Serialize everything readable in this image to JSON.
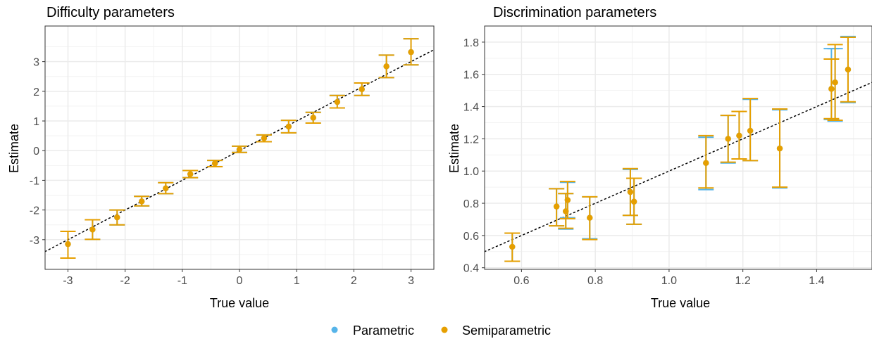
{
  "legend": {
    "items": [
      {
        "label": "Parametric",
        "color": "#56B4E9"
      },
      {
        "label": "Semiparametric",
        "color": "#E69F00"
      }
    ]
  },
  "chart_data": [
    {
      "type": "scatter",
      "title": "Difficulty parameters",
      "xlabel": "True value",
      "ylabel": "Estimate",
      "xlim": [
        -3.4,
        3.4
      ],
      "ylim": [
        -4.0,
        4.2
      ],
      "xticks": [
        -3,
        -2,
        -1,
        0,
        1,
        2,
        3
      ],
      "yticks": [
        -3,
        -2,
        -1,
        0,
        1,
        2,
        3
      ],
      "grid": true,
      "reference_line": "y = x",
      "series": [
        {
          "name": "Parametric",
          "color": "#56B4E9",
          "points": [
            {
              "x": -3.0,
              "y": -3.15,
              "lo": -3.62,
              "hi": -2.72
            },
            {
              "x": -2.57,
              "y": -2.66,
              "lo": -2.99,
              "hi": -2.33
            },
            {
              "x": -2.14,
              "y": -2.25,
              "lo": -2.5,
              "hi": -2.0
            },
            {
              "x": -1.71,
              "y": -1.71,
              "lo": -1.86,
              "hi": -1.54
            },
            {
              "x": -1.29,
              "y": -1.27,
              "lo": -1.45,
              "hi": -1.08
            },
            {
              "x": -0.86,
              "y": -0.79,
              "lo": -0.91,
              "hi": -0.67
            },
            {
              "x": -0.43,
              "y": -0.43,
              "lo": -0.54,
              "hi": -0.33
            },
            {
              "x": 0.0,
              "y": 0.04,
              "lo": -0.06,
              "hi": 0.15
            },
            {
              "x": 0.43,
              "y": 0.42,
              "lo": 0.3,
              "hi": 0.53
            },
            {
              "x": 0.86,
              "y": 0.81,
              "lo": 0.6,
              "hi": 1.02
            },
            {
              "x": 1.29,
              "y": 1.11,
              "lo": 0.93,
              "hi": 1.29
            },
            {
              "x": 1.71,
              "y": 1.64,
              "lo": 1.44,
              "hi": 1.86
            },
            {
              "x": 2.14,
              "y": 2.07,
              "lo": 1.86,
              "hi": 2.28
            },
            {
              "x": 2.57,
              "y": 2.84,
              "lo": 2.46,
              "hi": 3.22
            },
            {
              "x": 3.0,
              "y": 3.32,
              "lo": 2.89,
              "hi": 3.77
            }
          ]
        },
        {
          "name": "Semiparametric",
          "color": "#E69F00",
          "points": [
            {
              "x": -3.0,
              "y": -3.15,
              "lo": -3.62,
              "hi": -2.72
            },
            {
              "x": -2.57,
              "y": -2.66,
              "lo": -2.99,
              "hi": -2.33
            },
            {
              "x": -2.14,
              "y": -2.25,
              "lo": -2.5,
              "hi": -2.0
            },
            {
              "x": -1.71,
              "y": -1.71,
              "lo": -1.86,
              "hi": -1.54
            },
            {
              "x": -1.29,
              "y": -1.27,
              "lo": -1.45,
              "hi": -1.08
            },
            {
              "x": -0.86,
              "y": -0.79,
              "lo": -0.91,
              "hi": -0.67
            },
            {
              "x": -0.43,
              "y": -0.43,
              "lo": -0.54,
              "hi": -0.33
            },
            {
              "x": 0.0,
              "y": 0.04,
              "lo": -0.06,
              "hi": 0.15
            },
            {
              "x": 0.43,
              "y": 0.42,
              "lo": 0.3,
              "hi": 0.53
            },
            {
              "x": 0.86,
              "y": 0.81,
              "lo": 0.6,
              "hi": 1.02
            },
            {
              "x": 1.29,
              "y": 1.11,
              "lo": 0.93,
              "hi": 1.29
            },
            {
              "x": 1.71,
              "y": 1.64,
              "lo": 1.44,
              "hi": 1.86
            },
            {
              "x": 2.14,
              "y": 2.07,
              "lo": 1.86,
              "hi": 2.28
            },
            {
              "x": 2.57,
              "y": 2.84,
              "lo": 2.46,
              "hi": 3.22
            },
            {
              "x": 3.0,
              "y": 3.32,
              "lo": 2.89,
              "hi": 3.77
            }
          ]
        }
      ]
    },
    {
      "type": "scatter",
      "title": "Discrimination parameters",
      "xlabel": "True value",
      "ylabel": "Estimate",
      "xlim": [
        0.5,
        1.55
      ],
      "ylim": [
        0.39,
        1.9
      ],
      "xticks": [
        0.6,
        0.8,
        1.0,
        1.2,
        1.4
      ],
      "xtick_labels": [
        "0.6",
        "0.8",
        "1.0",
        "1.2",
        "1.4"
      ],
      "yticks": [
        0.4,
        0.6,
        0.8,
        1.0,
        1.2,
        1.4,
        1.6,
        1.8
      ],
      "ytick_labels": [
        "0.4",
        "0.6",
        "0.8",
        "1.0",
        "1.2",
        "1.4",
        "1.6",
        "1.8"
      ],
      "grid": true,
      "reference_line": "y = x",
      "series": [
        {
          "name": "Parametric",
          "color": "#56B4E9",
          "points": [
            {
              "x": 0.575,
              "y": 0.53,
              "lo": 0.44,
              "hi": 0.615
            },
            {
              "x": 0.695,
              "y": 0.78,
              "lo": 0.66,
              "hi": 0.89
            },
            {
              "x": 0.72,
              "y": 0.75,
              "lo": 0.64,
              "hi": 0.86
            },
            {
              "x": 0.725,
              "y": 0.82,
              "lo": 0.71,
              "hi": 0.93
            },
            {
              "x": 0.785,
              "y": 0.71,
              "lo": 0.58,
              "hi": 0.84
            },
            {
              "x": 0.895,
              "y": 0.87,
              "lo": 0.725,
              "hi": 1.01
            },
            {
              "x": 0.905,
              "y": 0.81,
              "lo": 0.67,
              "hi": 0.955
            },
            {
              "x": 1.1,
              "y": 1.05,
              "lo": 0.885,
              "hi": 1.21
            },
            {
              "x": 1.16,
              "y": 1.2,
              "lo": 1.05,
              "hi": 1.345
            },
            {
              "x": 1.19,
              "y": 1.22,
              "lo": 1.075,
              "hi": 1.37
            },
            {
              "x": 1.22,
              "y": 1.25,
              "lo": 1.065,
              "hi": 1.445
            },
            {
              "x": 1.3,
              "y": 1.14,
              "lo": 0.895,
              "hi": 1.38
            },
            {
              "x": 1.44,
              "y": 1.51,
              "lo": 1.32,
              "hi": 1.76
            },
            {
              "x": 1.45,
              "y": 1.55,
              "lo": 1.31,
              "hi": 1.76
            },
            {
              "x": 1.485,
              "y": 1.63,
              "lo": 1.425,
              "hi": 1.835
            }
          ]
        },
        {
          "name": "Semiparametric",
          "color": "#E69F00",
          "points": [
            {
              "x": 0.575,
              "y": 0.53,
              "lo": 0.44,
              "hi": 0.615
            },
            {
              "x": 0.695,
              "y": 0.78,
              "lo": 0.66,
              "hi": 0.89
            },
            {
              "x": 0.72,
              "y": 0.75,
              "lo": 0.645,
              "hi": 0.86
            },
            {
              "x": 0.725,
              "y": 0.82,
              "lo": 0.705,
              "hi": 0.935
            },
            {
              "x": 0.785,
              "y": 0.71,
              "lo": 0.575,
              "hi": 0.84
            },
            {
              "x": 0.895,
              "y": 0.87,
              "lo": 0.725,
              "hi": 1.015
            },
            {
              "x": 0.905,
              "y": 0.81,
              "lo": 0.67,
              "hi": 0.955
            },
            {
              "x": 1.1,
              "y": 1.05,
              "lo": 0.895,
              "hi": 1.22
            },
            {
              "x": 1.16,
              "y": 1.2,
              "lo": 1.055,
              "hi": 1.345
            },
            {
              "x": 1.19,
              "y": 1.22,
              "lo": 1.075,
              "hi": 1.37
            },
            {
              "x": 1.22,
              "y": 1.25,
              "lo": 1.065,
              "hi": 1.45
            },
            {
              "x": 1.3,
              "y": 1.14,
              "lo": 0.9,
              "hi": 1.385
            },
            {
              "x": 1.44,
              "y": 1.51,
              "lo": 1.325,
              "hi": 1.695
            },
            {
              "x": 1.45,
              "y": 1.55,
              "lo": 1.315,
              "hi": 1.785
            },
            {
              "x": 1.485,
              "y": 1.63,
              "lo": 1.43,
              "hi": 1.83
            }
          ]
        }
      ]
    }
  ]
}
